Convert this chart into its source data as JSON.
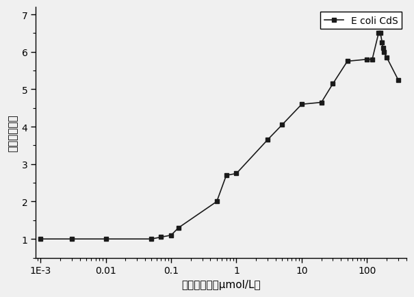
{
  "x": [
    0.001,
    0.003,
    0.01,
    0.05,
    0.07,
    0.1,
    0.13,
    0.5,
    0.7,
    1.0,
    3.0,
    5.0,
    10.0,
    20.0,
    30.0,
    50.0,
    100.0,
    120.0,
    150.0,
    160.0,
    170.0,
    175.0,
    180.0,
    200.0,
    300.0
  ],
  "y": [
    1.0,
    1.0,
    1.0,
    1.0,
    1.05,
    1.1,
    1.3,
    2.0,
    2.7,
    2.75,
    3.65,
    4.05,
    4.6,
    4.65,
    5.15,
    5.75,
    5.8,
    5.8,
    6.5,
    6.5,
    6.25,
    6.1,
    6.0,
    5.85,
    5.25
  ],
  "color": "#1a1a1a",
  "marker": "s",
  "markersize": 5,
  "linewidth": 1.2,
  "legend_label": "E coli CdS",
  "xlabel": "镜离子浓度（μmol/L）",
  "ylabel": "相对荧光强度",
  "ylim": [
    0.5,
    7.2
  ],
  "yticks": [
    1,
    2,
    3,
    4,
    5,
    6,
    7
  ],
  "xtick_labels": [
    "1E-3",
    "0.01",
    "0.1",
    "1",
    "10",
    "100"
  ],
  "xtick_values": [
    0.001,
    0.01,
    0.1,
    1,
    10,
    100
  ],
  "background_color": "#f0f0f0",
  "label_fontsize": 11,
  "tick_fontsize": 10,
  "legend_fontsize": 10
}
